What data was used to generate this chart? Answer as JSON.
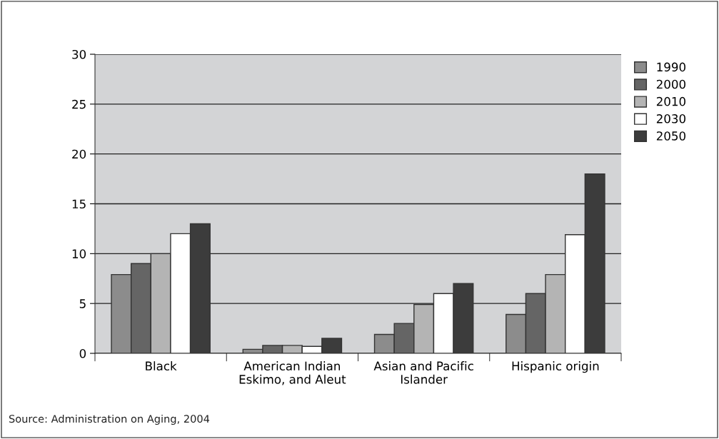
{
  "chart_data": {
    "type": "bar",
    "categories": [
      "Black",
      "American Indian\nEskimo, and Aleut",
      "Asian and Pacific\nIslander",
      "Hispanic origin"
    ],
    "series": [
      {
        "name": "1990",
        "color": "#8c8c8c",
        "values": [
          7.9,
          0.4,
          1.9,
          3.9
        ]
      },
      {
        "name": "2000",
        "color": "#656565",
        "values": [
          9,
          0.8,
          3,
          6
        ]
      },
      {
        "name": "2010",
        "color": "#b4b4b4",
        "values": [
          10,
          0.8,
          4.9,
          7.9
        ]
      },
      {
        "name": "2030",
        "color": "#ffffff",
        "values": [
          12,
          0.7,
          6,
          11.9
        ]
      },
      {
        "name": "2050",
        "color": "#3c3c3c",
        "values": [
          13,
          1.5,
          7,
          18
        ]
      }
    ],
    "ylim": [
      0,
      30
    ],
    "yticks": [
      0,
      5,
      10,
      15,
      20,
      25,
      30
    ],
    "grid": "y",
    "legend": "right",
    "annotations": [
      "Source: Administration on Aging, 2004"
    ]
  }
}
